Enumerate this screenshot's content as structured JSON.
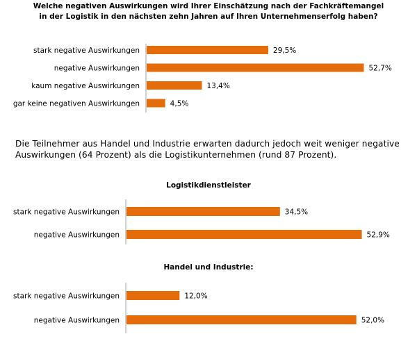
{
  "title": {
    "line1": "Welche negativen Auswirkungen wird Ihrer Einschätzung nach der Fachkräftemangel",
    "line2": "in der Logistik in den nächsten zehn Jahren auf Ihren Unternehmenserfolg haben?"
  },
  "paragraph": {
    "line1": "Die Teilnehmer aus Handel und Industrie erwarten dadurch jedoch weit weniger negative",
    "line2": "Auswirkungen (64 Prozent) als die Logistikunternehmen (rund 87 Prozent)."
  },
  "colors": {
    "bar": "#e46c0a",
    "axis": "#a6a6a6"
  },
  "chart_data": [
    {
      "type": "bar",
      "orientation": "horizontal",
      "title": "",
      "categories": [
        "stark negative Auswirkungen",
        "negative Auswirkungen",
        "kaum negative Auswirkungen",
        "gar keine negativen Auswirkungen"
      ],
      "values": [
        29.5,
        52.7,
        13.4,
        4.5
      ],
      "value_labels": [
        "29,5%",
        "52,7%",
        "13,4%",
        "4,5%"
      ],
      "unit": "%"
    },
    {
      "type": "bar",
      "orientation": "horizontal",
      "title": "Logistikdienstleister",
      "categories": [
        "stark negative Auswirkungen",
        "negative Auswirkungen"
      ],
      "values": [
        34.5,
        52.9
      ],
      "value_labels": [
        "34,5%",
        "52,9%"
      ],
      "unit": "%"
    },
    {
      "type": "bar",
      "orientation": "horizontal",
      "title": "Handel und Industrie:",
      "categories": [
        "stark negative Auswirkungen",
        "negative Auswirkungen"
      ],
      "values": [
        12.0,
        52.0
      ],
      "value_labels": [
        "12,0%",
        "52,0%"
      ],
      "unit": "%"
    }
  ]
}
